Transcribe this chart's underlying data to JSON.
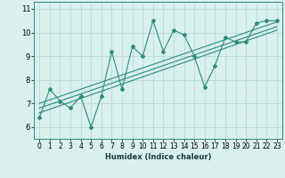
{
  "xlabel": "Humidex (Indice chaleur)",
  "x_data": [
    0,
    1,
    2,
    3,
    4,
    5,
    6,
    7,
    8,
    9,
    10,
    11,
    12,
    13,
    14,
    15,
    16,
    17,
    18,
    19,
    20,
    21,
    22,
    23
  ],
  "y_data": [
    6.4,
    7.6,
    7.1,
    6.8,
    7.3,
    6.0,
    7.3,
    9.2,
    7.6,
    9.4,
    9.0,
    10.5,
    9.2,
    10.1,
    9.9,
    9.0,
    7.7,
    8.6,
    9.8,
    9.6,
    9.6,
    10.4,
    10.5,
    10.5
  ],
  "trend_lines": [
    {
      "x_start": 0,
      "y_start": 6.6,
      "x_end": 23,
      "y_end": 10.1
    },
    {
      "x_start": 0,
      "y_start": 6.8,
      "x_end": 23,
      "y_end": 10.25
    },
    {
      "x_start": 0,
      "y_start": 7.0,
      "x_end": 23,
      "y_end": 10.45
    }
  ],
  "line_color": "#2e8b7a",
  "bg_color": "#d8f0ee",
  "grid_color": "#b8dbd8",
  "ylim": [
    5.5,
    11.3
  ],
  "xlim": [
    -0.5,
    23.5
  ],
  "yticks": [
    6,
    7,
    8,
    9,
    10,
    11
  ],
  "xticks": [
    0,
    1,
    2,
    3,
    4,
    5,
    6,
    7,
    8,
    9,
    10,
    11,
    12,
    13,
    14,
    15,
    16,
    17,
    18,
    19,
    20,
    21,
    22,
    23
  ],
  "xlabel_fontsize": 6.0,
  "tick_fontsize": 5.5,
  "ytick_fontsize": 6.0
}
